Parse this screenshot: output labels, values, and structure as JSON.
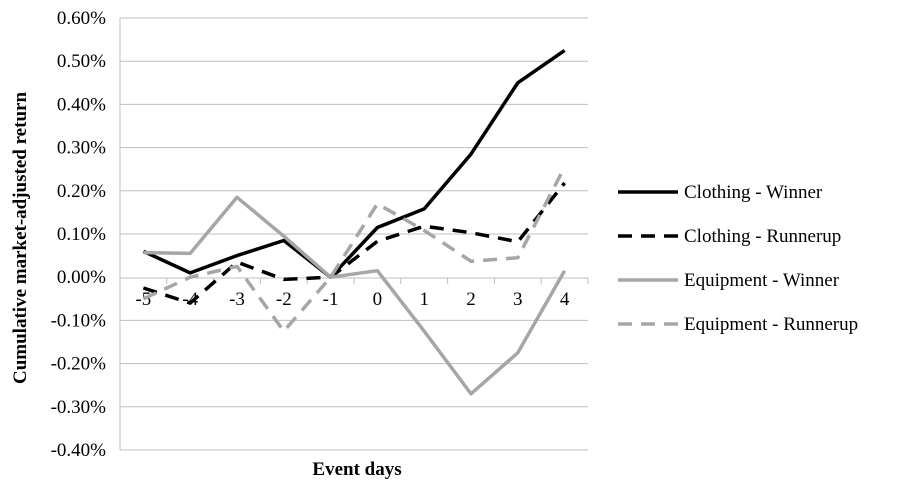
{
  "chart_data": {
    "type": "line",
    "title": "",
    "xlabel": "Event days",
    "ylabel": "Cumulative market-adjusted return",
    "categories": [
      "-5",
      "-4",
      "-3",
      "-2",
      "-1",
      "0",
      "1",
      "2",
      "3",
      "4"
    ],
    "ylim": [
      -0.004,
      0.006
    ],
    "ytick_labels": [
      "0.60%",
      "0.50%",
      "0.40%",
      "0.30%",
      "0.20%",
      "0.10%",
      "0.00%",
      "-0.10%",
      "-0.20%",
      "-0.30%",
      "-0.40%"
    ],
    "yticks": [
      0.006,
      0.005,
      0.004,
      0.003,
      0.002,
      0.001,
      0.0,
      -0.001,
      -0.002,
      -0.003,
      -0.004
    ],
    "grid": "horizontal",
    "legend_position": "right",
    "series": [
      {
        "name": "Clothing - Winner",
        "color": "#000000",
        "dash": "solid",
        "values": [
          0.0006,
          0.0001,
          0.0005,
          0.00085,
          0.0,
          0.00115,
          0.00158,
          0.00285,
          0.0045,
          0.00525
        ]
      },
      {
        "name": "Clothing - Runnerup",
        "color": "#000000",
        "dash": "dashed",
        "values": [
          -0.00025,
          -0.0006,
          0.00035,
          -5e-05,
          0.0,
          0.00083,
          0.00118,
          0.00103,
          0.00082,
          0.00218
        ]
      },
      {
        "name": "Equipment - Winner",
        "color": "#a6a6a6",
        "dash": "solid",
        "values": [
          0.00057,
          0.00055,
          0.00185,
          0.00095,
          0.0,
          0.00015,
          -0.00125,
          -0.0027,
          -0.00175,
          0.00015
        ]
      },
      {
        "name": "Equipment - Runnerup",
        "color": "#a6a6a6",
        "dash": "dashed",
        "values": [
          -0.0005,
          0.0,
          0.00025,
          -0.00125,
          0.0,
          0.0017,
          0.00108,
          0.00037,
          0.00045,
          0.00255
        ]
      }
    ]
  }
}
